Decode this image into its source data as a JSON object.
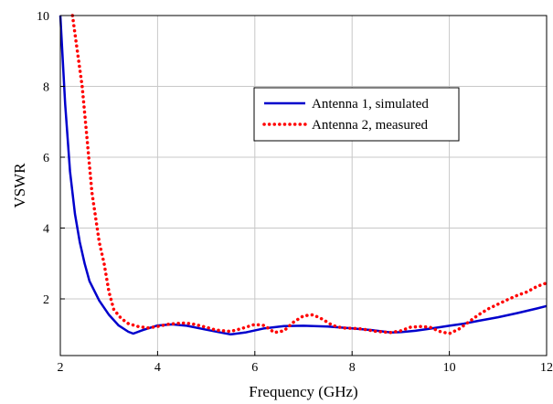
{
  "chart_data": {
    "type": "line",
    "xlabel": "Frequency (GHz)",
    "ylabel": "VSWR",
    "xlim": [
      2,
      12
    ],
    "ylim": [
      0.4,
      10
    ],
    "xticks": [
      2,
      4,
      6,
      8,
      10,
      12
    ],
    "yticks": [
      2,
      4,
      6,
      8,
      10
    ],
    "grid": true,
    "legend_position": "upper-right",
    "series": [
      {
        "name": "Antenna 1, simulated",
        "color": "#0000cc",
        "style": "solid",
        "x": [
          2.0,
          2.1,
          2.2,
          2.3,
          2.4,
          2.5,
          2.6,
          2.8,
          3.0,
          3.2,
          3.4,
          3.5,
          3.7,
          4.0,
          4.3,
          4.6,
          5.0,
          5.3,
          5.5,
          5.8,
          6.2,
          6.6,
          7.0,
          7.5,
          8.0,
          8.4,
          8.8,
          9.0,
          9.3,
          9.6,
          10.0,
          10.3,
          10.6,
          11.0,
          11.4,
          11.8,
          12.0
        ],
        "y": [
          10.0,
          7.5,
          5.6,
          4.4,
          3.6,
          3.0,
          2.5,
          1.95,
          1.55,
          1.25,
          1.07,
          1.02,
          1.12,
          1.25,
          1.28,
          1.24,
          1.13,
          1.05,
          1.0,
          1.05,
          1.17,
          1.23,
          1.24,
          1.22,
          1.17,
          1.12,
          1.05,
          1.06,
          1.1,
          1.16,
          1.24,
          1.3,
          1.38,
          1.48,
          1.6,
          1.73,
          1.8
        ]
      },
      {
        "name": "Antenna 2, measured",
        "color": "#ff0000",
        "style": "dotted",
        "x": [
          2.25,
          2.35,
          2.45,
          2.55,
          2.65,
          2.8,
          2.9,
          3.0,
          3.1,
          3.25,
          3.4,
          3.6,
          3.8,
          4.0,
          4.2,
          4.5,
          4.7,
          5.0,
          5.2,
          5.5,
          5.7,
          6.0,
          6.2,
          6.4,
          6.6,
          6.8,
          7.0,
          7.2,
          7.4,
          7.6,
          7.8,
          8.0,
          8.2,
          8.5,
          8.8,
          9.0,
          9.2,
          9.4,
          9.6,
          9.8,
          10.0,
          10.2,
          10.4,
          10.6,
          10.8,
          11.0,
          11.2,
          11.4,
          11.6,
          11.8,
          12.0
        ],
        "y": [
          10.0,
          9.0,
          8.0,
          6.5,
          5.0,
          3.6,
          3.0,
          2.2,
          1.7,
          1.45,
          1.3,
          1.22,
          1.18,
          1.22,
          1.28,
          1.32,
          1.3,
          1.2,
          1.12,
          1.08,
          1.15,
          1.28,
          1.25,
          1.05,
          1.1,
          1.35,
          1.52,
          1.55,
          1.42,
          1.25,
          1.18,
          1.17,
          1.15,
          1.08,
          1.05,
          1.1,
          1.2,
          1.22,
          1.2,
          1.08,
          1.02,
          1.15,
          1.35,
          1.55,
          1.72,
          1.85,
          1.98,
          2.1,
          2.2,
          2.35,
          2.45
        ]
      }
    ]
  }
}
